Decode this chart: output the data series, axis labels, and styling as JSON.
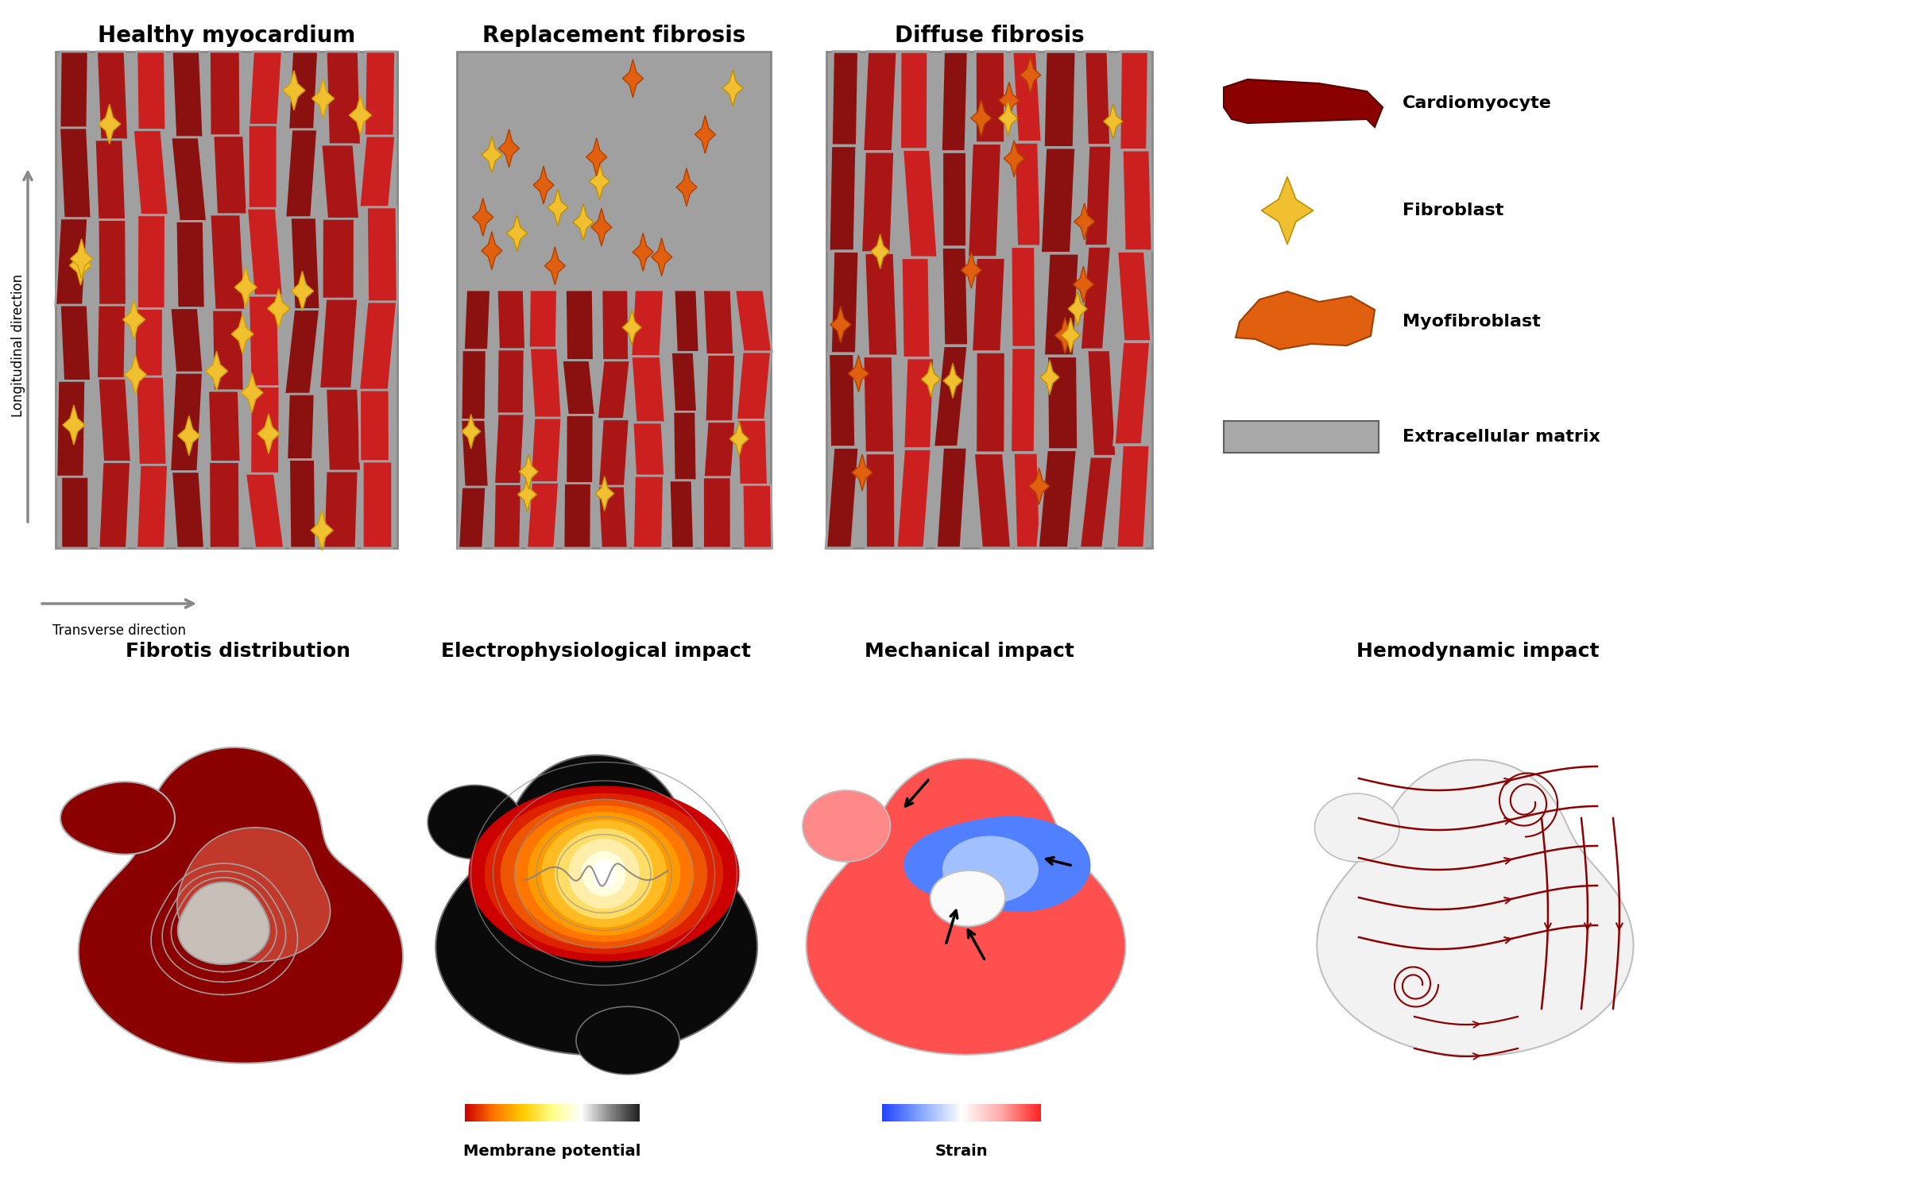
{
  "bg_color": "#ffffff",
  "title_top_left": "Healthy myocardium",
  "title_top_middle": "Replacement fibrosis",
  "title_top_right": "Diffuse fibrosis",
  "legend_items": [
    "Cardiomyocyte",
    "Fibroblast",
    "Myofibroblast",
    "Extracellular matrix"
  ],
  "axis_label_longitudinal": "Longitudinal direction",
  "axis_label_transverse": "Transverse direction",
  "title_bottom_1": "Fibrotis distribution",
  "title_bottom_2": "Electrophysiological impact",
  "title_bottom_3": "Mechanical impact",
  "title_bottom_4": "Hemodynamic impact",
  "colorbar_label_1": "Membrane potential",
  "colorbar_label_2": "Strain",
  "cell_dark": "#8B1010",
  "cell_mid": "#AA1515",
  "cell_light": "#CC2020",
  "ecm_gray": "#A0A0A0",
  "fibroblast_yellow": "#F0C030",
  "fibroblast_orange": "#E06010",
  "myofib_orange": "#E06010",
  "legend_cmc_color": "#8B0000",
  "legend_fib_color": "#F0C030",
  "legend_myo_color": "#E06010",
  "legend_ecm_color": "#A8A8A8"
}
